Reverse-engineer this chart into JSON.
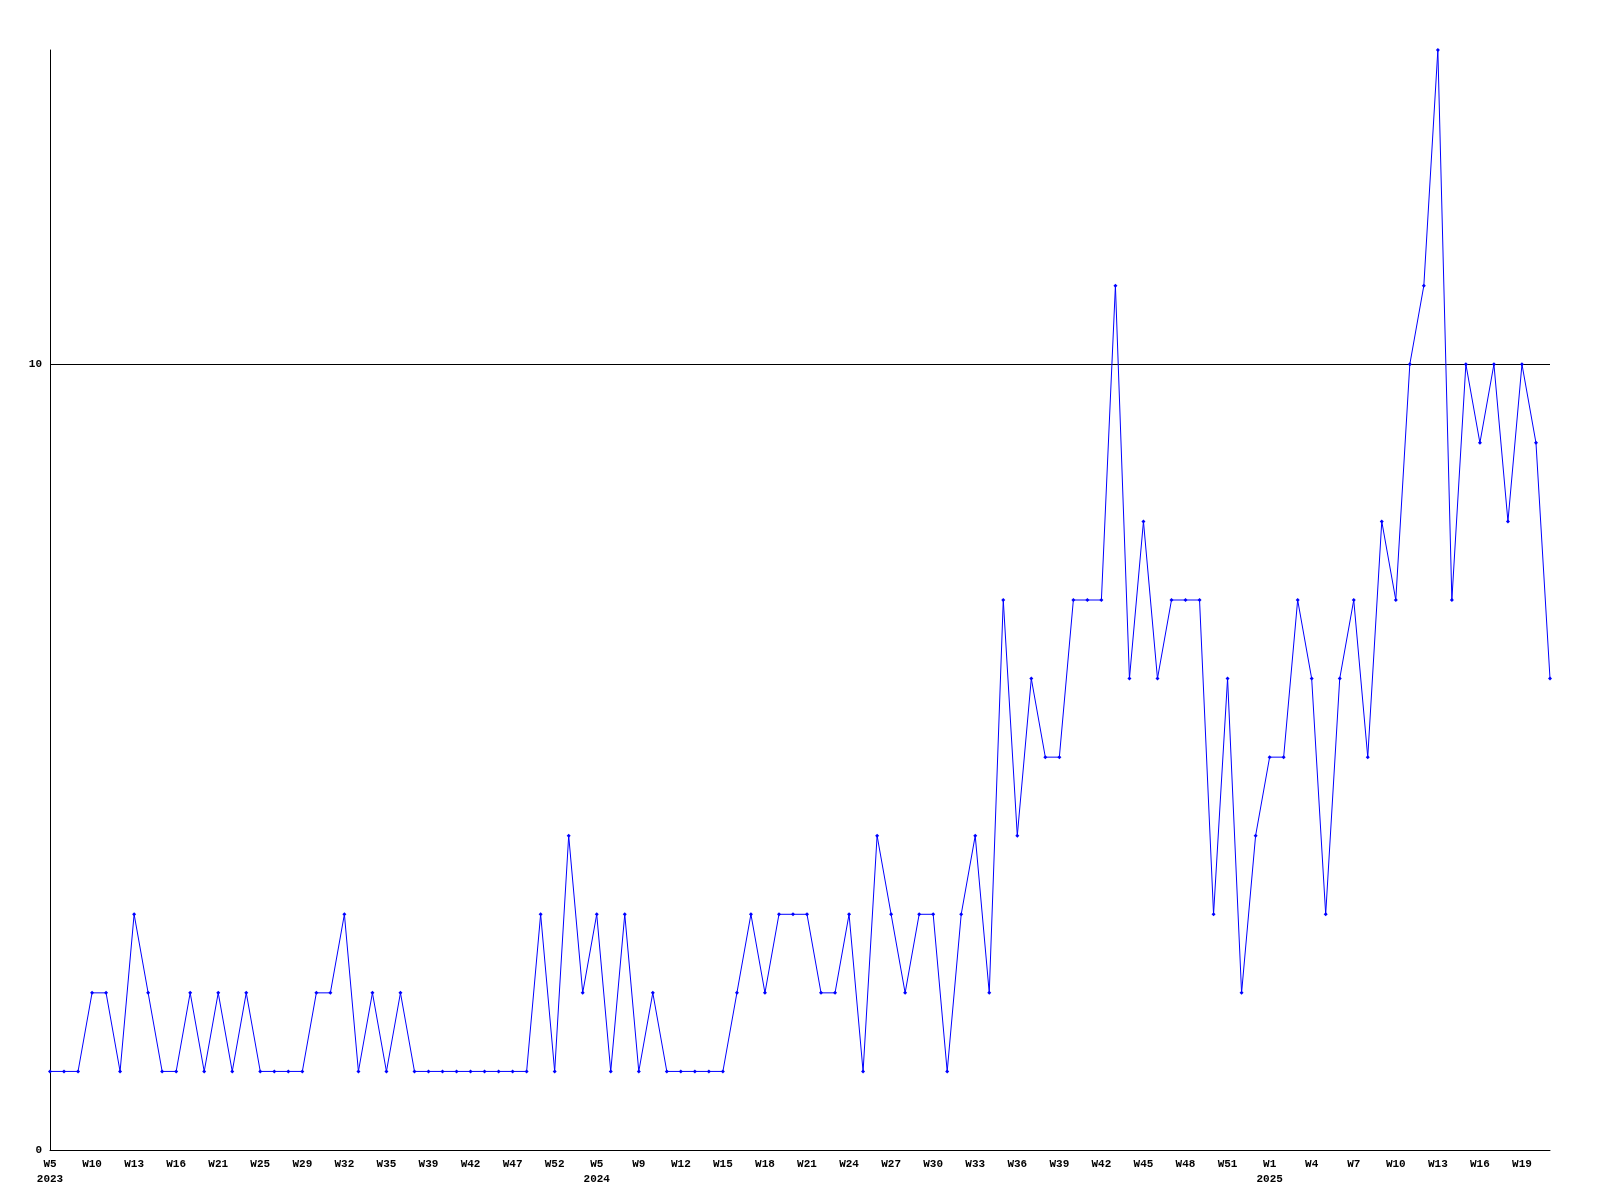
{
  "chart_data": {
    "type": "line",
    "categories": [
      "W5\n2023",
      null,
      null,
      "W10",
      null,
      null,
      "W13",
      null,
      null,
      "W16",
      null,
      null,
      "W21",
      null,
      null,
      "W25",
      null,
      null,
      "W29",
      null,
      null,
      "W32",
      null,
      null,
      "W35",
      null,
      null,
      "W39",
      null,
      null,
      "W42",
      null,
      null,
      "W47",
      null,
      null,
      "W52",
      null,
      null,
      "W5\n2024",
      null,
      null,
      "W9",
      null,
      null,
      "W12",
      null,
      null,
      "W15",
      null,
      null,
      "W18",
      null,
      null,
      "W21",
      null,
      null,
      "W24",
      null,
      null,
      "W27",
      null,
      null,
      "W30",
      null,
      null,
      "W33",
      null,
      null,
      "W36",
      null,
      null,
      "W39",
      null,
      null,
      "W42",
      null,
      null,
      "W45",
      null,
      null,
      "W48",
      null,
      null,
      "W51",
      null,
      null,
      "W1\n2025",
      null,
      null,
      "W4",
      null,
      null,
      "W7",
      null,
      null,
      "W10",
      null,
      null,
      "W13",
      null,
      null,
      "W16",
      null,
      null,
      "W19",
      null,
      null
    ],
    "series": [
      {
        "color": "#0000ff",
        "values": [
          1,
          1,
          1,
          2,
          2,
          1,
          3,
          2,
          1,
          1,
          2,
          1,
          2,
          1,
          2,
          1,
          1,
          1,
          1,
          2,
          2,
          3,
          1,
          2,
          1,
          2,
          1,
          1,
          1,
          1,
          1,
          1,
          1,
          1,
          1,
          3,
          1,
          4,
          2,
          3,
          1,
          3,
          1,
          2,
          1,
          1,
          1,
          1,
          1,
          2,
          3,
          2,
          3,
          3,
          3,
          2,
          2,
          3,
          1,
          4,
          3,
          2,
          3,
          3,
          1,
          3,
          4,
          2,
          7,
          4,
          6,
          5,
          5,
          7,
          7,
          7,
          11,
          6,
          8,
          6,
          7,
          7,
          7,
          3,
          6,
          2,
          4,
          5,
          5,
          7,
          6,
          3,
          6,
          7,
          5,
          8,
          7,
          10,
          11,
          14,
          7,
          10,
          9,
          10,
          8,
          10,
          9,
          6
        ]
      }
    ],
    "ylim": [
      0,
      14
    ],
    "yticks": [
      0,
      10
    ],
    "grid": "y",
    "marker": "diamond",
    "line_style": "solid"
  }
}
